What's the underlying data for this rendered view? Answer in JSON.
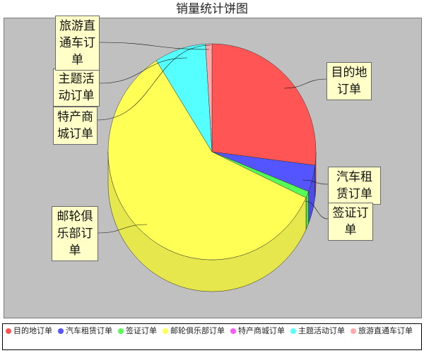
{
  "chart_data": {
    "type": "pie",
    "title": "销量统计饼图",
    "categories": [
      "目的地订单",
      "汽车租赁订单",
      "签证订单",
      "邮轮俱乐部订单",
      "特产商城订单",
      "主题活动订单",
      "旅游直通车订单"
    ],
    "values": [
      27,
      4,
      1,
      59,
      0,
      8,
      1
    ],
    "colors": [
      "#ff5555",
      "#5555ff",
      "#55ff55",
      "#ffff55",
      "#ff55ff",
      "#55ffff",
      "#ffaaaa"
    ],
    "legend_position": "bottom",
    "labels": [
      "目的地\n订单",
      "汽车租\n赁订单",
      "签证订\n单",
      "邮轮俱\n乐部订\n单",
      "特产商\n城订单",
      "主题活\n动订单",
      "旅游直\n通车订\n单"
    ]
  }
}
